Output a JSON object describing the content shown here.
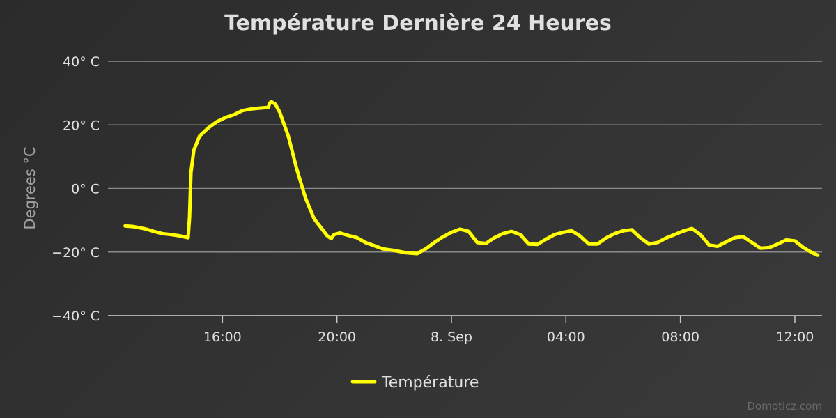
{
  "chart_data": {
    "type": "line",
    "title": "Température Dernière 24 Heures",
    "ylabel": "Degrees °C",
    "xlabel": "",
    "ylim": [
      -40,
      40
    ],
    "y_ticks": [
      {
        "value": 40,
        "label": "40° C"
      },
      {
        "value": 20,
        "label": "20° C"
      },
      {
        "value": 0,
        "label": "0° C"
      },
      {
        "value": -20,
        "label": "−20° C"
      },
      {
        "value": -40,
        "label": "−40° C"
      }
    ],
    "x_ticks": [
      {
        "value": 16,
        "label": "16:00"
      },
      {
        "value": 20,
        "label": "20:00"
      },
      {
        "value": 24,
        "label": "8. Sep"
      },
      {
        "value": 28,
        "label": "04:00"
      },
      {
        "value": 32,
        "label": "08:00"
      },
      {
        "value": 36,
        "label": "12:00"
      }
    ],
    "grid": true,
    "legend_position": "bottom-center",
    "series": [
      {
        "name": "Température",
        "color": "#ffff00",
        "x": [
          12.6,
          12.9,
          13.3,
          13.6,
          13.9,
          14.2,
          14.5,
          14.8,
          14.85,
          14.9,
          15.0,
          15.2,
          15.5,
          15.8,
          16.1,
          16.4,
          16.7,
          17.0,
          17.3,
          17.6,
          17.65,
          17.7,
          17.85,
          18.0,
          18.3,
          18.6,
          18.9,
          19.2,
          19.5,
          19.65,
          19.8,
          19.9,
          20.1,
          20.4,
          20.7,
          21.0,
          21.3,
          21.6,
          22.0,
          22.4,
          22.8,
          23.1,
          23.4,
          23.7,
          24.0,
          24.3,
          24.6,
          24.9,
          25.2,
          25.5,
          25.8,
          26.1,
          26.4,
          26.7,
          27.0,
          27.3,
          27.6,
          27.9,
          28.2,
          28.5,
          28.8,
          29.1,
          29.4,
          29.7,
          30.0,
          30.3,
          30.6,
          30.9,
          31.2,
          31.5,
          31.8,
          32.1,
          32.4,
          32.7,
          33.0,
          33.3,
          33.6,
          33.9,
          34.2,
          34.5,
          34.8,
          35.1,
          35.4,
          35.7,
          36.0,
          36.3,
          36.6,
          36.8
        ],
        "values": [
          -11.8,
          -12.0,
          -12.7,
          -13.5,
          -14.2,
          -14.5,
          -14.9,
          -15.5,
          -9,
          5,
          12,
          16.5,
          19,
          21,
          22.3,
          23.2,
          24.5,
          25.0,
          25.3,
          25.5,
          26.8,
          27.3,
          26.5,
          24.0,
          16.5,
          6.0,
          -3.0,
          -9.5,
          -13.0,
          -14.8,
          -15.8,
          -14.5,
          -14.0,
          -14.8,
          -15.5,
          -17.0,
          -18.0,
          -19.0,
          -19.5,
          -20.2,
          -20.5,
          -19.0,
          -17.0,
          -15.2,
          -13.8,
          -12.8,
          -13.5,
          -17.0,
          -17.3,
          -15.5,
          -14.2,
          -13.5,
          -14.5,
          -17.5,
          -17.6,
          -16.0,
          -14.5,
          -13.8,
          -13.3,
          -15.0,
          -17.5,
          -17.5,
          -15.6,
          -14.2,
          -13.3,
          -13.0,
          -15.5,
          -17.5,
          -17.0,
          -15.6,
          -14.5,
          -13.4,
          -12.6,
          -14.5,
          -17.8,
          -18.2,
          -16.8,
          -15.5,
          -15.2,
          -17.0,
          -18.8,
          -18.6,
          -17.5,
          -16.2,
          -16.5,
          -18.6,
          -20.2,
          -21.0
        ]
      }
    ]
  },
  "footer": {
    "credit": "Domoticz.com"
  }
}
